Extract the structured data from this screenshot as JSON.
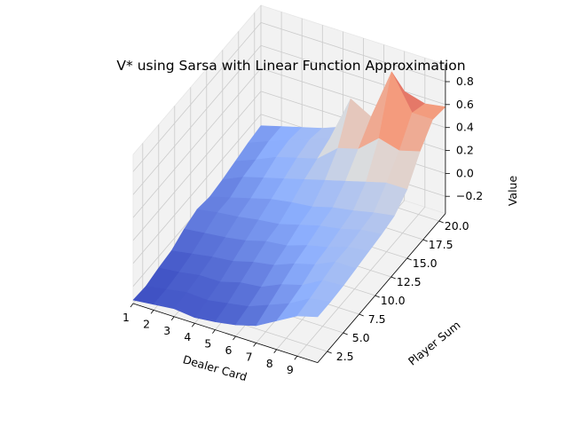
{
  "chart_data": {
    "type": "surface3d",
    "title": "V* using Sarsa with Linear Function Approximation",
    "xlabel": "Dealer Card",
    "ylabel": "Player Sum",
    "zlabel": "Value",
    "x_ticks": [
      "1",
      "2",
      "3",
      "4",
      "5",
      "6",
      "7",
      "8",
      "9"
    ],
    "y_ticks": [
      "2.5",
      "5.0",
      "7.5",
      "10.0",
      "12.5",
      "15.0",
      "17.5",
      "20.0"
    ],
    "z_ticks": [
      "-0.2",
      "0.0",
      "0.2",
      "0.4",
      "0.6",
      "0.8"
    ],
    "xlim": [
      1,
      10
    ],
    "ylim": [
      1,
      21
    ],
    "zlim": [
      -0.35,
      0.95
    ],
    "colormap": "coolwarm",
    "grid": true,
    "dealer_card_samples": [
      1,
      2,
      3,
      4,
      5,
      6,
      7,
      8,
      9,
      10
    ],
    "player_sum_samples": [
      1,
      3,
      5,
      7,
      9,
      11,
      13,
      15,
      17,
      19,
      21
    ],
    "values": [
      [
        -0.32,
        -0.33,
        -0.3,
        -0.28,
        -0.22,
        -0.18,
        -0.2,
        -0.18,
        -0.15,
        -0.12,
        -0.1
      ],
      [
        -0.3,
        -0.3,
        -0.28,
        -0.25,
        -0.2,
        -0.15,
        -0.15,
        -0.1,
        -0.08,
        -0.05,
        -0.05
      ],
      [
        -0.28,
        -0.27,
        -0.25,
        -0.22,
        -0.18,
        -0.13,
        -0.1,
        -0.05,
        0.0,
        0.02,
        0.0
      ],
      [
        -0.3,
        -0.28,
        -0.25,
        -0.2,
        -0.15,
        -0.1,
        -0.05,
        0.0,
        0.05,
        0.08,
        0.05
      ],
      [
        -0.28,
        -0.25,
        -0.2,
        -0.15,
        -0.1,
        -0.08,
        -0.02,
        0.05,
        0.1,
        0.15,
        0.12
      ],
      [
        -0.25,
        -0.22,
        -0.18,
        -0.12,
        -0.08,
        -0.03,
        0.0,
        0.1,
        0.25,
        0.55,
        0.18
      ],
      [
        -0.2,
        -0.15,
        -0.1,
        -0.05,
        -0.02,
        0.02,
        0.05,
        0.15,
        0.3,
        0.45,
        0.25
      ],
      [
        -0.1,
        -0.08,
        -0.05,
        0.0,
        0.02,
        0.05,
        0.08,
        0.2,
        0.45,
        0.9,
        0.6
      ],
      [
        0.0,
        0.02,
        0.05,
        0.08,
        0.08,
        0.1,
        0.12,
        0.25,
        0.4,
        0.6,
        0.55
      ],
      [
        0.05,
        0.05,
        0.06,
        0.08,
        0.1,
        0.12,
        0.15,
        0.25,
        0.45,
        0.6,
        0.58
      ]
    ]
  }
}
